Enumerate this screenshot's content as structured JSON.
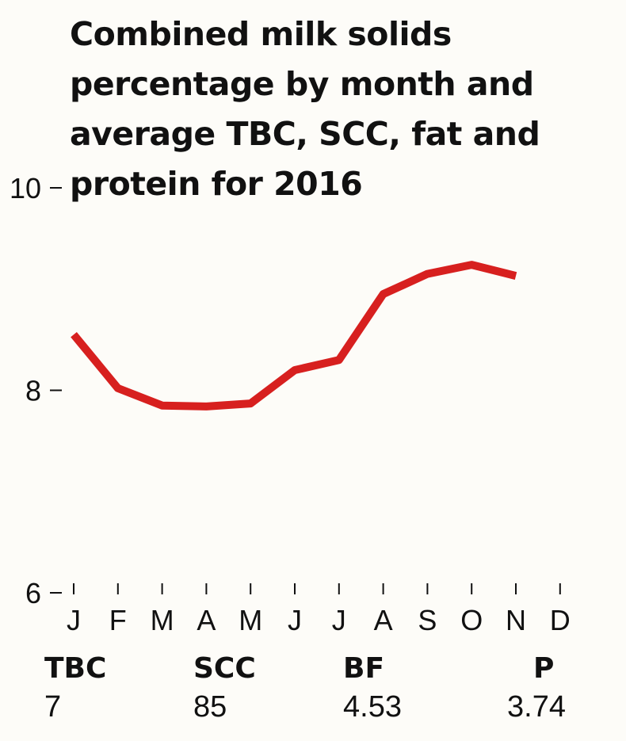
{
  "title": "Combined milk solids percentage by month and average TBC, SCC, fat and protein for 2016",
  "colors": {
    "line": "#d7201f",
    "text": "#111111",
    "background": "#fdfcf8"
  },
  "chart_data": {
    "type": "line",
    "title": "Combined milk solids percentage by month and average TBC, SCC, fat and protein for 2016",
    "xlabel": "",
    "ylabel": "",
    "categories": [
      "J",
      "F",
      "M",
      "A",
      "M",
      "J",
      "J",
      "A",
      "S",
      "O",
      "N",
      "D"
    ],
    "ylim": [
      6,
      10
    ],
    "yticks": [
      "10",
      "8",
      "6"
    ],
    "grid": false,
    "series": [
      {
        "values": [
          8.55,
          8.02,
          7.85,
          7.84,
          7.87,
          8.2,
          8.3,
          8.95,
          9.15,
          9.24,
          9.13,
          null
        ]
      }
    ]
  },
  "stats": [
    {
      "label": "TBC",
      "value": "7"
    },
    {
      "label": "SCC",
      "value": "85"
    },
    {
      "label": "BF",
      "value": "4.53"
    },
    {
      "label": "P",
      "value": "3.74"
    }
  ]
}
